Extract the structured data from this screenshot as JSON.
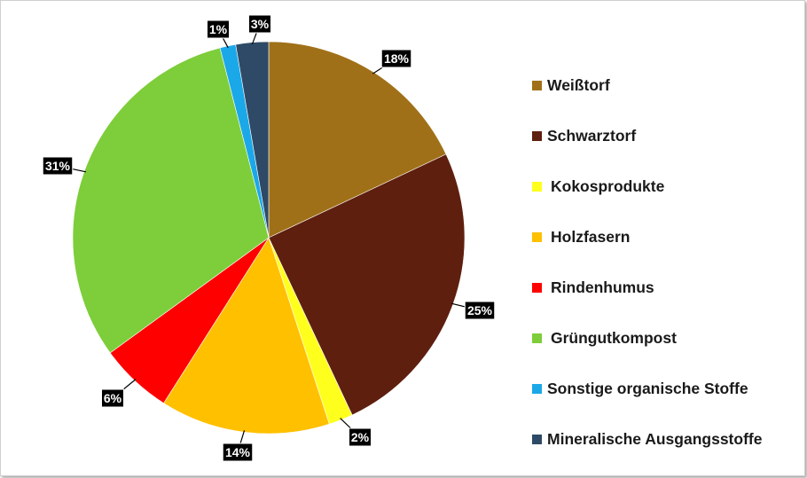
{
  "chart_data": {
    "type": "pie",
    "slices": [
      {
        "label": "Weißtorf",
        "value": 18,
        "display": "18%",
        "color": "#A07018"
      },
      {
        "label": "Schwarztorf",
        "value": 25,
        "display": "25%",
        "color": "#5F1F0F"
      },
      {
        "label": "Kokosprodukte",
        "value": 2,
        "display": "2%",
        "color": "#FFFF1E"
      },
      {
        "label": "Holzfasern",
        "value": 14,
        "display": "14%",
        "color": "#FFC000"
      },
      {
        "label": "Rindenhumus",
        "value": 6,
        "display": "6%",
        "color": "#FF0000"
      },
      {
        "label": "Grüngutkompost",
        "value": 31,
        "display": "31%",
        "color": "#7DCE3A"
      },
      {
        "label": "Sonstige organische Stoffe",
        "value": 1.3,
        "display": "1%",
        "color": "#1BA8E8"
      },
      {
        "label": "Mineralische Ausgangsstoffe",
        "value": 2.7,
        "display": "3%",
        "color": "#2E4A66"
      }
    ],
    "legend_position": "right",
    "start_angle": "top, clockwise",
    "data_labels": "outside with leader lines"
  }
}
